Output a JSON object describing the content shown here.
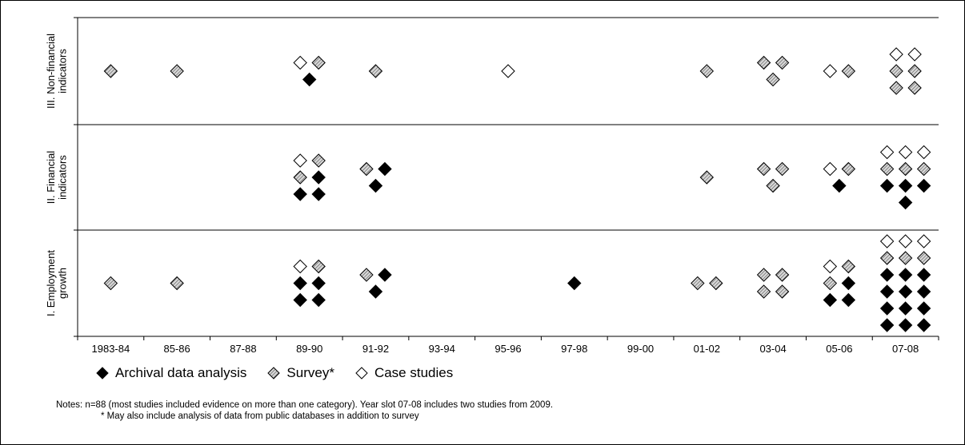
{
  "chart_data": {
    "type": "scatter",
    "x_categories": [
      "1983-84",
      "85-86",
      "87-88",
      "89-90",
      "91-92",
      "93-94",
      "95-96",
      "97-98",
      "99-00",
      "01-02",
      "03-04",
      "05-06",
      "07-08"
    ],
    "panels": [
      {
        "label_lines": [
          "III. Non-financial",
          "indicators"
        ],
        "studies": {
          "1983-84": {
            "archival": 0,
            "survey": 1,
            "case": 0
          },
          "85-86": {
            "archival": 0,
            "survey": 1,
            "case": 0
          },
          "89-90": {
            "archival": 1,
            "survey": 1,
            "case": 1
          },
          "91-92": {
            "archival": 0,
            "survey": 1,
            "case": 0
          },
          "95-96": {
            "archival": 0,
            "survey": 0,
            "case": 1
          },
          "01-02": {
            "archival": 0,
            "survey": 1,
            "case": 0
          },
          "03-04": {
            "archival": 0,
            "survey": 3,
            "case": 0
          },
          "05-06": {
            "archival": 0,
            "survey": 1,
            "case": 1
          },
          "07-08": {
            "archival": 0,
            "survey": 4,
            "case": 2
          }
        }
      },
      {
        "label_lines": [
          "II. Financial",
          "indicators"
        ],
        "studies": {
          "89-90": {
            "archival": 3,
            "survey": 2,
            "case": 1
          },
          "91-92": {
            "archival": 2,
            "survey": 1,
            "case": 0
          },
          "01-02": {
            "archival": 0,
            "survey": 1,
            "case": 0
          },
          "03-04": {
            "archival": 0,
            "survey": 3,
            "case": 0
          },
          "05-06": {
            "archival": 1,
            "survey": 1,
            "case": 1
          },
          "07-08": {
            "archival": 4,
            "survey": 3,
            "case": 3
          }
        }
      },
      {
        "label_lines": [
          "I. Employment",
          "growth"
        ],
        "studies": {
          "1983-84": {
            "archival": 0,
            "survey": 1,
            "case": 0
          },
          "85-86": {
            "archival": 0,
            "survey": 1,
            "case": 0
          },
          "89-90": {
            "archival": 4,
            "survey": 1,
            "case": 1
          },
          "91-92": {
            "archival": 2,
            "survey": 1,
            "case": 0
          },
          "97-98": {
            "archival": 1,
            "survey": 0,
            "case": 0
          },
          "01-02": {
            "archival": 0,
            "survey": 2,
            "case": 0
          },
          "03-04": {
            "archival": 0,
            "survey": 4,
            "case": 0
          },
          "05-06": {
            "archival": 3,
            "survey": 2,
            "case": 1
          },
          "07-08": {
            "archival": 12,
            "survey": 3,
            "case": 3
          }
        }
      }
    ],
    "legend": [
      {
        "key": "archival",
        "label": "Archival data analysis"
      },
      {
        "key": "survey",
        "label": "Survey*"
      },
      {
        "key": "case",
        "label": "Case studies"
      }
    ],
    "colors": {
      "archival": "#000000",
      "survey": "#a6a6a6",
      "case": "#ffffff"
    }
  },
  "notes": {
    "line1": "Notes:  n=88 (most studies included evidence on more than one category). Year slot 07-08 includes two studies from 2009.",
    "line2": "* May also include analysis of data from public databases in addition to survey"
  }
}
